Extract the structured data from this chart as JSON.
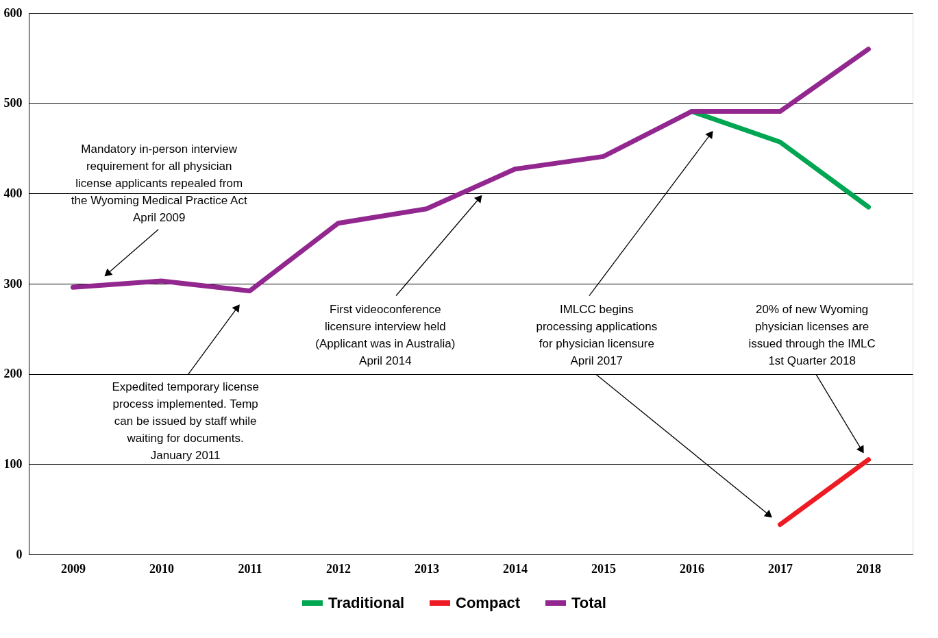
{
  "chart_data": {
    "type": "line",
    "categories": [
      "2009",
      "2010",
      "2011",
      "2012",
      "2013",
      "2014",
      "2015",
      "2016",
      "2017",
      "2018"
    ],
    "series": [
      {
        "name": "Traditional",
        "color": "#00a651",
        "values": [
          null,
          null,
          null,
          null,
          null,
          null,
          null,
          491,
          457,
          385
        ]
      },
      {
        "name": "Compact",
        "color": "#ed1c24",
        "values": [
          null,
          null,
          null,
          null,
          null,
          null,
          null,
          null,
          33,
          105
        ]
      },
      {
        "name": "Total",
        "color": "#92278f",
        "values": [
          296,
          303,
          292,
          367,
          383,
          427,
          441,
          491,
          491,
          560
        ]
      }
    ],
    "ylim": [
      0,
      600
    ],
    "yticks": [
      0,
      100,
      200,
      300,
      400,
      500,
      600
    ],
    "grid": "y",
    "legend": "bottom",
    "marker": "none",
    "line_style": "solid",
    "annotations": [
      "Mandatory in-person interview\nrequirement for all physician\nlicense applicants repealed from\nthe Wyoming Medical Practice Act\nApril 2009",
      "Expedited temporary license\nprocess implemented. Temp\ncan be issued by staff while\nwaiting for documents.\nJanuary 2011",
      "First videoconference\nlicensure interview held\n(Applicant was in Australia)\nApril 2014",
      "IMLCC begins\nprocessing applications\nfor physician licensure\nApril 2017",
      "20% of new Wyoming\nphysician licenses are\nissued through the IMLC\n1st Quarter 2018"
    ]
  }
}
